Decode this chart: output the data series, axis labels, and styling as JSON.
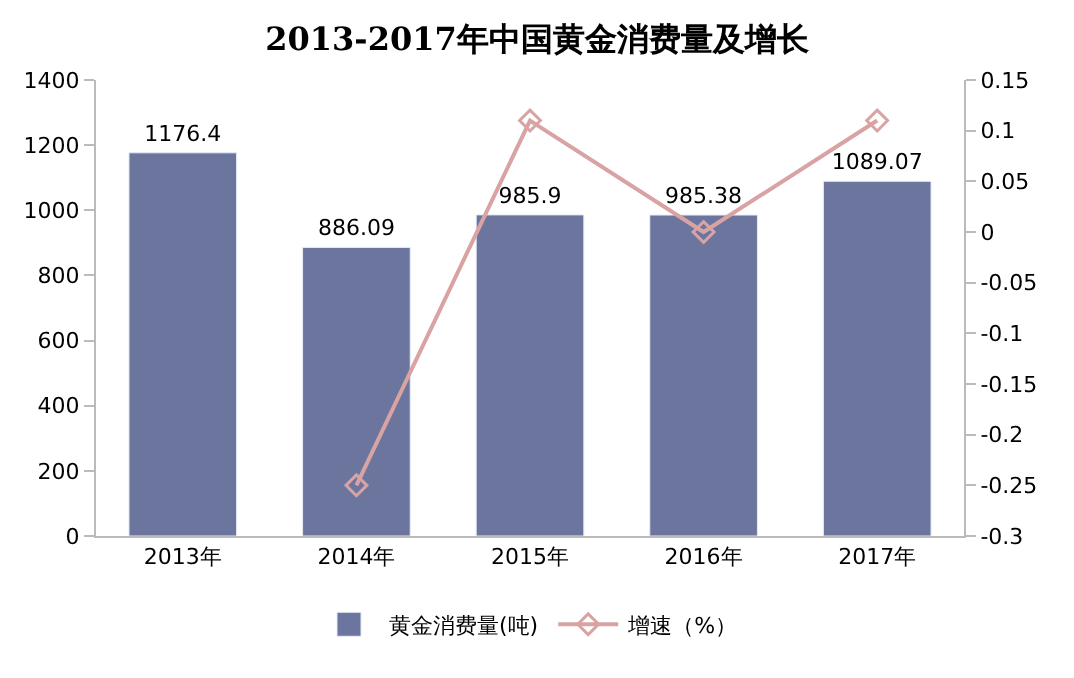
{
  "chart_data": {
    "type": "bar",
    "title": "2013-2017年中国黄金消费量及增长",
    "categories": [
      "2013年",
      "2014年",
      "2015年",
      "2016年",
      "2017年"
    ],
    "series": [
      {
        "name": "黄金消费量(吨)",
        "color": "#6b759e",
        "values": [
          1176.4,
          886.09,
          985.9,
          985.38,
          1089.07
        ],
        "value_labels": [
          "1176.4",
          "886.09",
          "985.9",
          "985.38",
          "1089.07"
        ]
      },
      {
        "name": "增速（%）",
        "type": "line",
        "axis": "y2",
        "color": "#d9a3a3",
        "marker": "diamond",
        "values": [
          null,
          -0.25,
          0.11,
          0.0,
          0.11
        ]
      }
    ],
    "ylim": [
      0,
      1400
    ],
    "yticks": [
      0,
      200,
      400,
      600,
      800,
      1000,
      1200,
      1400
    ],
    "y2lim": [
      -0.3,
      0.15
    ],
    "y2ticks": [
      -0.3,
      -0.25,
      -0.2,
      -0.15,
      -0.1,
      -0.05,
      0,
      0.05,
      0.1,
      0.15
    ],
    "legend": "bottom"
  }
}
